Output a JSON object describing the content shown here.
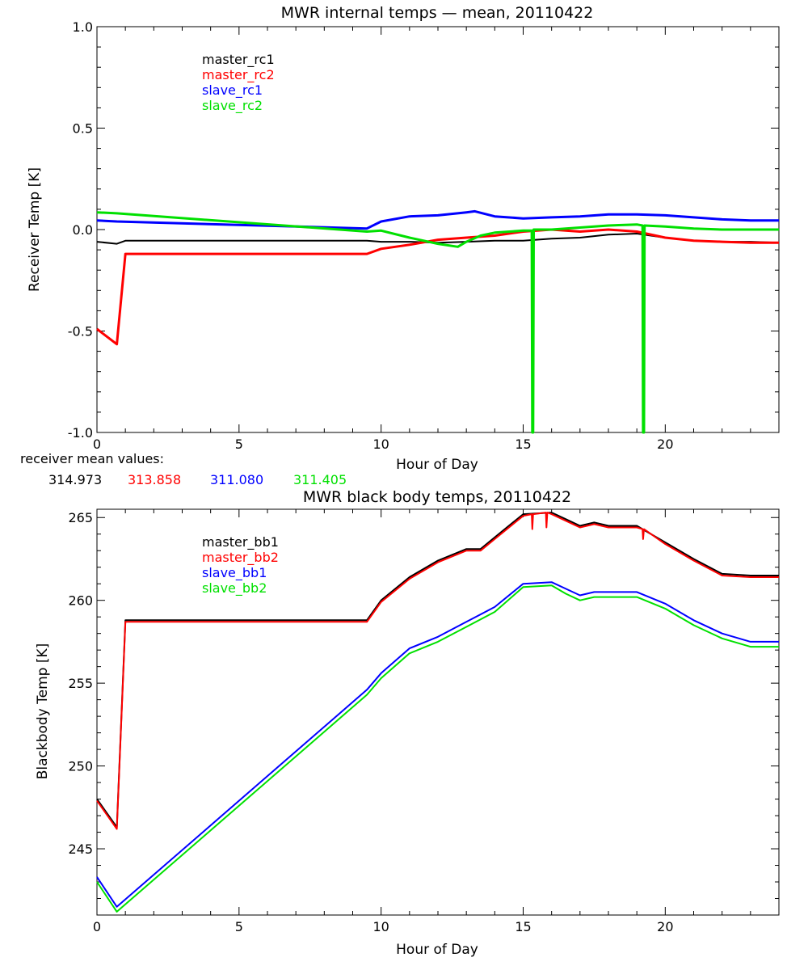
{
  "chart_data": [
    {
      "type": "line",
      "title": "MWR internal temps — mean, 20110422",
      "xlabel": "Hour of Day",
      "ylabel": "Receiver Temp [K]",
      "xlim": [
        0,
        24
      ],
      "ylim": [
        -1.0,
        1.0
      ],
      "xticks": [
        0,
        5,
        10,
        15,
        20
      ],
      "yticks": [
        "-1.0",
        "-0.5",
        "0.0",
        "0.5",
        "1.0"
      ],
      "legend": [
        "master_rc1",
        "master_rc2",
        "slave_rc1",
        "slave_rc2"
      ],
      "legend_position": "top-left",
      "series": [
        {
          "name": "master_rc1",
          "color": "#000000",
          "x": [
            0,
            0.7,
            1.0,
            9.5,
            10,
            11,
            12,
            13,
            14,
            15,
            16,
            17,
            18,
            19,
            20,
            21,
            22,
            23,
            24
          ],
          "y": [
            -0.06,
            -0.07,
            -0.055,
            -0.055,
            -0.06,
            -0.06,
            -0.065,
            -0.06,
            -0.055,
            -0.055,
            -0.045,
            -0.04,
            -0.025,
            -0.02,
            -0.04,
            -0.055,
            -0.06,
            -0.06,
            -0.065
          ]
        },
        {
          "name": "master_rc2",
          "color": "#ff0000",
          "x": [
            0,
            0.7,
            1.0,
            9.5,
            10,
            11,
            12,
            13,
            14,
            15,
            16,
            17,
            18,
            19,
            20,
            21,
            22,
            23,
            24
          ],
          "y": [
            -0.49,
            -0.565,
            -0.12,
            -0.12,
            -0.095,
            -0.075,
            -0.05,
            -0.04,
            -0.03,
            -0.01,
            0.0,
            -0.01,
            0.0,
            -0.01,
            -0.04,
            -0.055,
            -0.06,
            -0.065,
            -0.065
          ]
        },
        {
          "name": "slave_rc1",
          "color": "#0000ff",
          "x": [
            0,
            0.7,
            9.5,
            10,
            11,
            12,
            13,
            13.3,
            14,
            15,
            16,
            17,
            18,
            19,
            20,
            21,
            22,
            23,
            24
          ],
          "y": [
            0.045,
            0.04,
            0.005,
            0.04,
            0.065,
            0.07,
            0.085,
            0.09,
            0.065,
            0.055,
            0.06,
            0.065,
            0.075,
            0.075,
            0.07,
            0.06,
            0.05,
            0.045,
            0.045
          ]
        },
        {
          "name": "slave_rc2",
          "color": "#00e000",
          "x": [
            0,
            0.7,
            9.5,
            10,
            11,
            12,
            12.7,
            13,
            13.5,
            14,
            15,
            15.3,
            15.32,
            15.35,
            15.37,
            16,
            16.5,
            17,
            18,
            19,
            19.2,
            19.22,
            19.25,
            19.27,
            20,
            21,
            22,
            23,
            24
          ],
          "y": [
            0.085,
            0.08,
            -0.01,
            -0.005,
            -0.04,
            -0.07,
            -0.085,
            -0.06,
            -0.03,
            -0.015,
            -0.005,
            -0.005,
            -1.0,
            -1.0,
            0.0,
            0.0,
            0.005,
            0.01,
            0.02,
            0.025,
            0.02,
            -1.0,
            -1.0,
            0.02,
            0.015,
            0.005,
            0.0,
            0.0,
            0.0
          ]
        }
      ],
      "annotation_label": "receiver mean values:",
      "annotation_values": [
        "314.973",
        "313.858",
        "311.080",
        "311.405"
      ]
    },
    {
      "type": "line",
      "title": "MWR black body temps, 20110422",
      "xlabel": "Hour of Day",
      "ylabel": "Blackbody Temp [K]",
      "xlim": [
        0,
        24
      ],
      "ylim": [
        241,
        265.5
      ],
      "xticks": [
        0,
        5,
        10,
        15,
        20
      ],
      "yticks": [
        "245",
        "250",
        "255",
        "260",
        "265"
      ],
      "legend": [
        "master_bb1",
        "master_bb2",
        "slave_bb1",
        "slave_bb2"
      ],
      "legend_position": "top-left",
      "series": [
        {
          "name": "master_bb1",
          "color": "#000000",
          "x": [
            0,
            0.7,
            1.0,
            9.5,
            10,
            11,
            12,
            13,
            13.5,
            14,
            15,
            16,
            16.5,
            17,
            17.5,
            18,
            19,
            20,
            21,
            22,
            23,
            24
          ],
          "y": [
            248.0,
            246.3,
            258.8,
            258.8,
            260.0,
            261.4,
            262.4,
            263.1,
            263.1,
            263.8,
            265.2,
            265.3,
            264.9,
            264.5,
            264.7,
            264.5,
            264.5,
            263.5,
            262.5,
            261.6,
            261.5,
            261.5
          ]
        },
        {
          "name": "master_bb2",
          "color": "#ff0000",
          "x": [
            0,
            0.7,
            1.0,
            9.5,
            10,
            11,
            12,
            13,
            13.5,
            14,
            15,
            15.3,
            15.32,
            15.35,
            15.8,
            15.82,
            15.85,
            16,
            16.5,
            17,
            17.5,
            18,
            19,
            19.2,
            19.22,
            19.25,
            20,
            21,
            22,
            23,
            24
          ],
          "y": [
            247.9,
            246.2,
            258.7,
            258.7,
            259.9,
            261.3,
            262.3,
            263.0,
            263.0,
            263.7,
            265.1,
            265.2,
            264.3,
            265.2,
            265.3,
            264.4,
            265.3,
            265.2,
            264.8,
            264.4,
            264.6,
            264.4,
            264.4,
            264.3,
            263.7,
            264.3,
            263.4,
            262.4,
            261.5,
            261.4,
            261.4
          ]
        },
        {
          "name": "slave_bb1",
          "color": "#0000ff",
          "x": [
            0,
            0.7,
            9.5,
            10,
            11,
            12,
            13,
            14,
            15,
            16,
            16.5,
            17,
            17.5,
            18,
            19,
            20,
            21,
            22,
            23,
            24
          ],
          "y": [
            243.3,
            241.5,
            254.6,
            255.6,
            257.1,
            257.8,
            258.7,
            259.6,
            261.0,
            261.1,
            260.7,
            260.3,
            260.5,
            260.5,
            260.5,
            259.8,
            258.8,
            258.0,
            257.5,
            257.5
          ]
        },
        {
          "name": "slave_bb2",
          "color": "#00e000",
          "x": [
            0,
            0.7,
            9.5,
            10,
            11,
            12,
            13,
            14,
            15,
            16,
            16.5,
            17,
            17.5,
            18,
            19,
            20,
            21,
            22,
            23,
            24
          ],
          "y": [
            243.0,
            241.2,
            254.3,
            255.3,
            256.8,
            257.5,
            258.4,
            259.3,
            260.8,
            260.9,
            260.4,
            260.0,
            260.2,
            260.2,
            260.2,
            259.5,
            258.5,
            257.7,
            257.2,
            257.2
          ]
        }
      ]
    }
  ]
}
